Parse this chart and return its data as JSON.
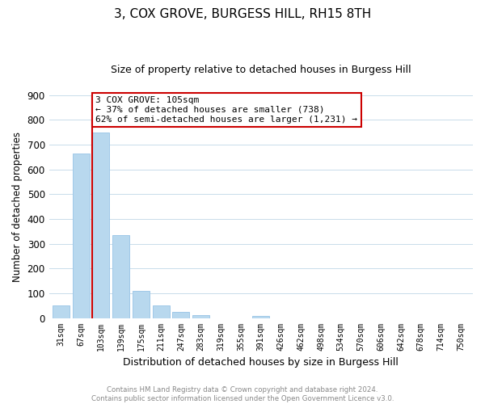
{
  "title": "3, COX GROVE, BURGESS HILL, RH15 8TH",
  "subtitle": "Size of property relative to detached houses in Burgess Hill",
  "xlabel": "Distribution of detached houses by size in Burgess Hill",
  "ylabel": "Number of detached properties",
  "bar_labels": [
    "31sqm",
    "67sqm",
    "103sqm",
    "139sqm",
    "175sqm",
    "211sqm",
    "247sqm",
    "283sqm",
    "319sqm",
    "355sqm",
    "391sqm",
    "426sqm",
    "462sqm",
    "498sqm",
    "534sqm",
    "570sqm",
    "606sqm",
    "642sqm",
    "678sqm",
    "714sqm",
    "750sqm"
  ],
  "bar_values": [
    52,
    665,
    750,
    335,
    108,
    52,
    25,
    13,
    0,
    0,
    8,
    0,
    0,
    0,
    0,
    0,
    0,
    0,
    0,
    0,
    0
  ],
  "bar_color": "#b8d8ee",
  "bar_edge_color": "#a0c8e8",
  "highlight_bar_index": 2,
  "highlight_line_color": "#cc0000",
  "annotation_line1": "3 COX GROVE: 105sqm",
  "annotation_line2": "← 37% of detached houses are smaller (738)",
  "annotation_line3": "62% of semi-detached houses are larger (1,231) →",
  "annotation_box_color": "#ffffff",
  "annotation_box_edge": "#cc0000",
  "ylim": [
    0,
    900
  ],
  "yticks": [
    0,
    100,
    200,
    300,
    400,
    500,
    600,
    700,
    800,
    900
  ],
  "footnote1": "Contains HM Land Registry data © Crown copyright and database right 2024.",
  "footnote2": "Contains public sector information licensed under the Open Government Licence v3.0.",
  "bg_color": "#ffffff",
  "grid_color": "#c8dcea",
  "title_fontsize": 11,
  "subtitle_fontsize": 9,
  "title_fontweight": "normal"
}
